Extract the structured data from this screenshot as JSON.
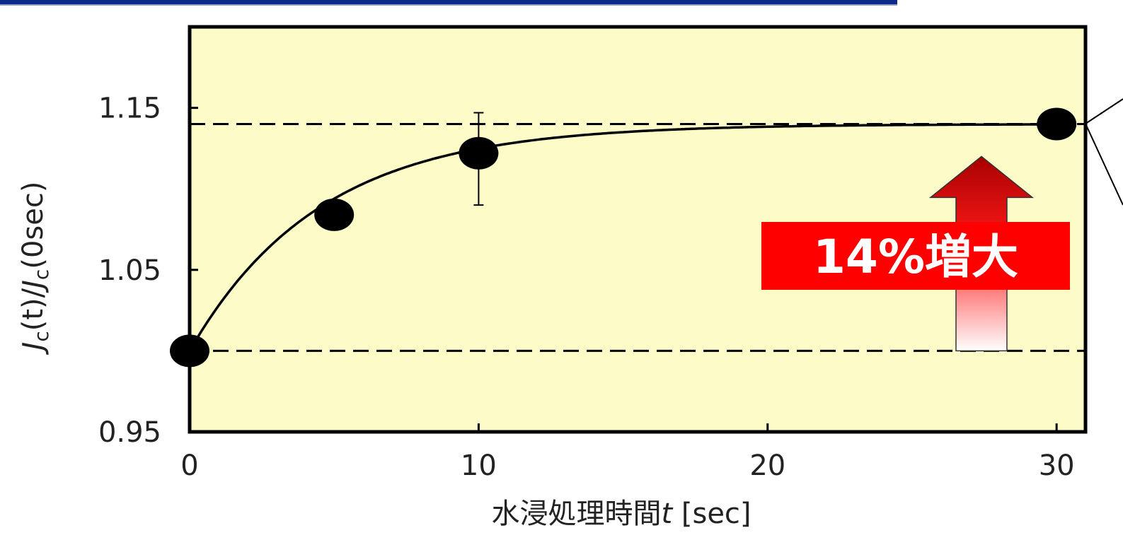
{
  "chart_data": {
    "type": "scatter",
    "title": "",
    "xlabel": "水浸処理時間t [sec]",
    "xlabel_parts": {
      "prefix": "水浸処理時間",
      "var": "t",
      "unit": " [sec]"
    },
    "ylabel": "Jc(t)/Jc(0sec)",
    "ylabel_parts": {
      "j1": "J",
      "sub1": "c",
      "mid": "(t)/",
      "j2": "J",
      "sub2": "c",
      "end": "(0sec)"
    },
    "xlim": [
      0,
      31
    ],
    "ylim": [
      0.95,
      1.2
    ],
    "x_ticks": [
      0,
      10,
      20,
      30
    ],
    "x_tick_labels": [
      "0",
      "10",
      "20",
      "30"
    ],
    "y_ticks": [
      0.95,
      1.05,
      1.15
    ],
    "y_tick_labels": [
      "0.95",
      "1.05",
      "1.15"
    ],
    "grid": false,
    "series": [
      {
        "points": [
          {
            "x": 0,
            "y": 1.0
          },
          {
            "x": 5,
            "y": 1.084
          },
          {
            "x": 10,
            "y": 1.122,
            "err_low": 1.09,
            "err_high": 1.147
          },
          {
            "x": 30,
            "y": 1.14
          }
        ]
      }
    ],
    "fit_curve": {
      "form": "a - b*exp(-x/tau)",
      "a": 1.14,
      "b": 0.14,
      "tau": 4.5
    },
    "reference_lines": [
      1.0,
      1.14
    ],
    "annotation": {
      "text": "14%増大",
      "arrow_from": 1.0,
      "arrow_to": 1.12,
      "at_x": 27.4
    },
    "colors": {
      "plot_background": "#fdfcc9",
      "marker": "#000000",
      "callout_box": "#ff0000",
      "arrow_top": "#c00000",
      "arrow_bottom": "#ffffff",
      "header_bar": "#0b2a8a"
    }
  }
}
